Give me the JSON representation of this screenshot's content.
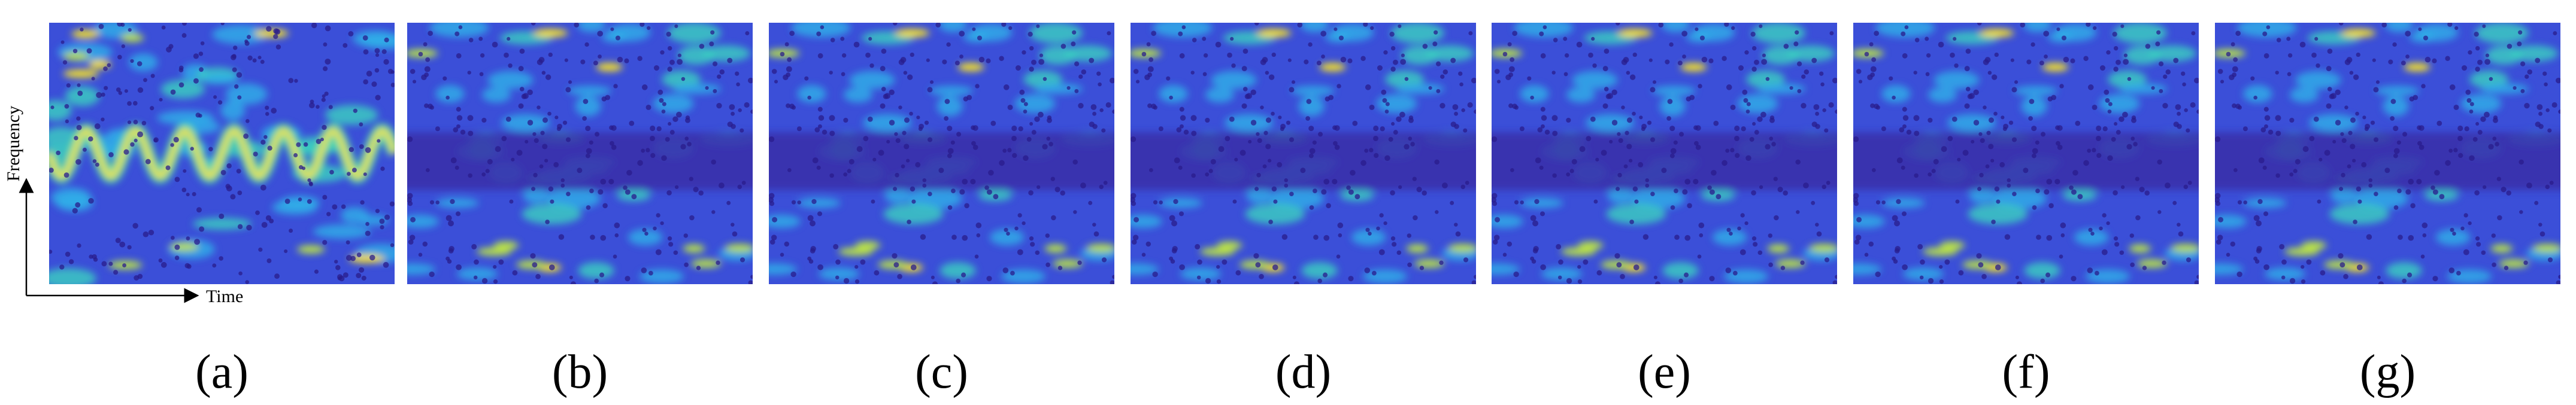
{
  "axes": {
    "x_label": "Time",
    "y_label": "Frequency"
  },
  "panels": [
    {
      "label": "(a)"
    },
    {
      "label": "(b)"
    },
    {
      "label": "(c)"
    },
    {
      "label": "(d)"
    },
    {
      "label": "(e)"
    },
    {
      "label": "(f)"
    },
    {
      "label": "(g)"
    }
  ]
}
